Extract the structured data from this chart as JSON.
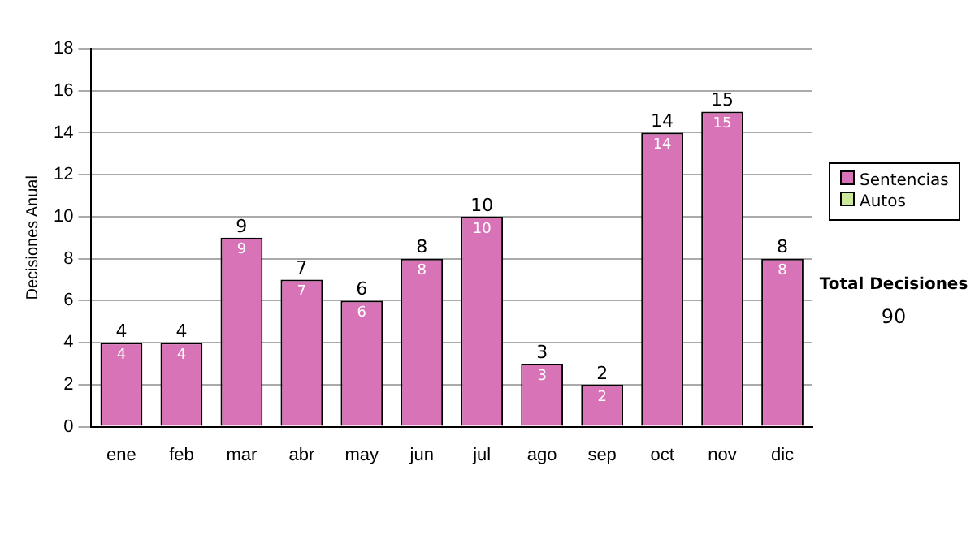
{
  "chart_data": {
    "type": "bar",
    "ylabel": "Decisiones Anual",
    "categories": [
      "ene",
      "feb",
      "mar",
      "abr",
      "may",
      "jun",
      "jul",
      "ago",
      "sep",
      "oct",
      "nov",
      "dic"
    ],
    "series": [
      {
        "name": "Sentencias",
        "color": "#d873b8",
        "values": [
          4,
          4,
          9,
          7,
          6,
          8,
          10,
          3,
          2,
          14,
          15,
          8
        ],
        "value_labels": [
          "4",
          "4",
          "9",
          "7",
          "6",
          "8",
          "10",
          "3",
          "2",
          "14",
          "15",
          "8"
        ]
      },
      {
        "name": "Autos",
        "color": "#cce89a",
        "values": [
          0,
          0,
          0,
          0,
          0,
          0,
          0,
          0,
          0,
          0,
          0,
          0
        ]
      }
    ],
    "stacked": true,
    "totals": [
      "4",
      "4",
      "9",
      "7",
      "6",
      "8",
      "10",
      "3",
      "2",
      "14",
      "15",
      "8"
    ],
    "ylim": [
      0,
      18
    ],
    "yticks": [
      0,
      2,
      4,
      6,
      8,
      10,
      12,
      14,
      16,
      18
    ],
    "grid": "y",
    "legend": "right",
    "annotations": [
      "Total Decisiones",
      "90"
    ]
  }
}
